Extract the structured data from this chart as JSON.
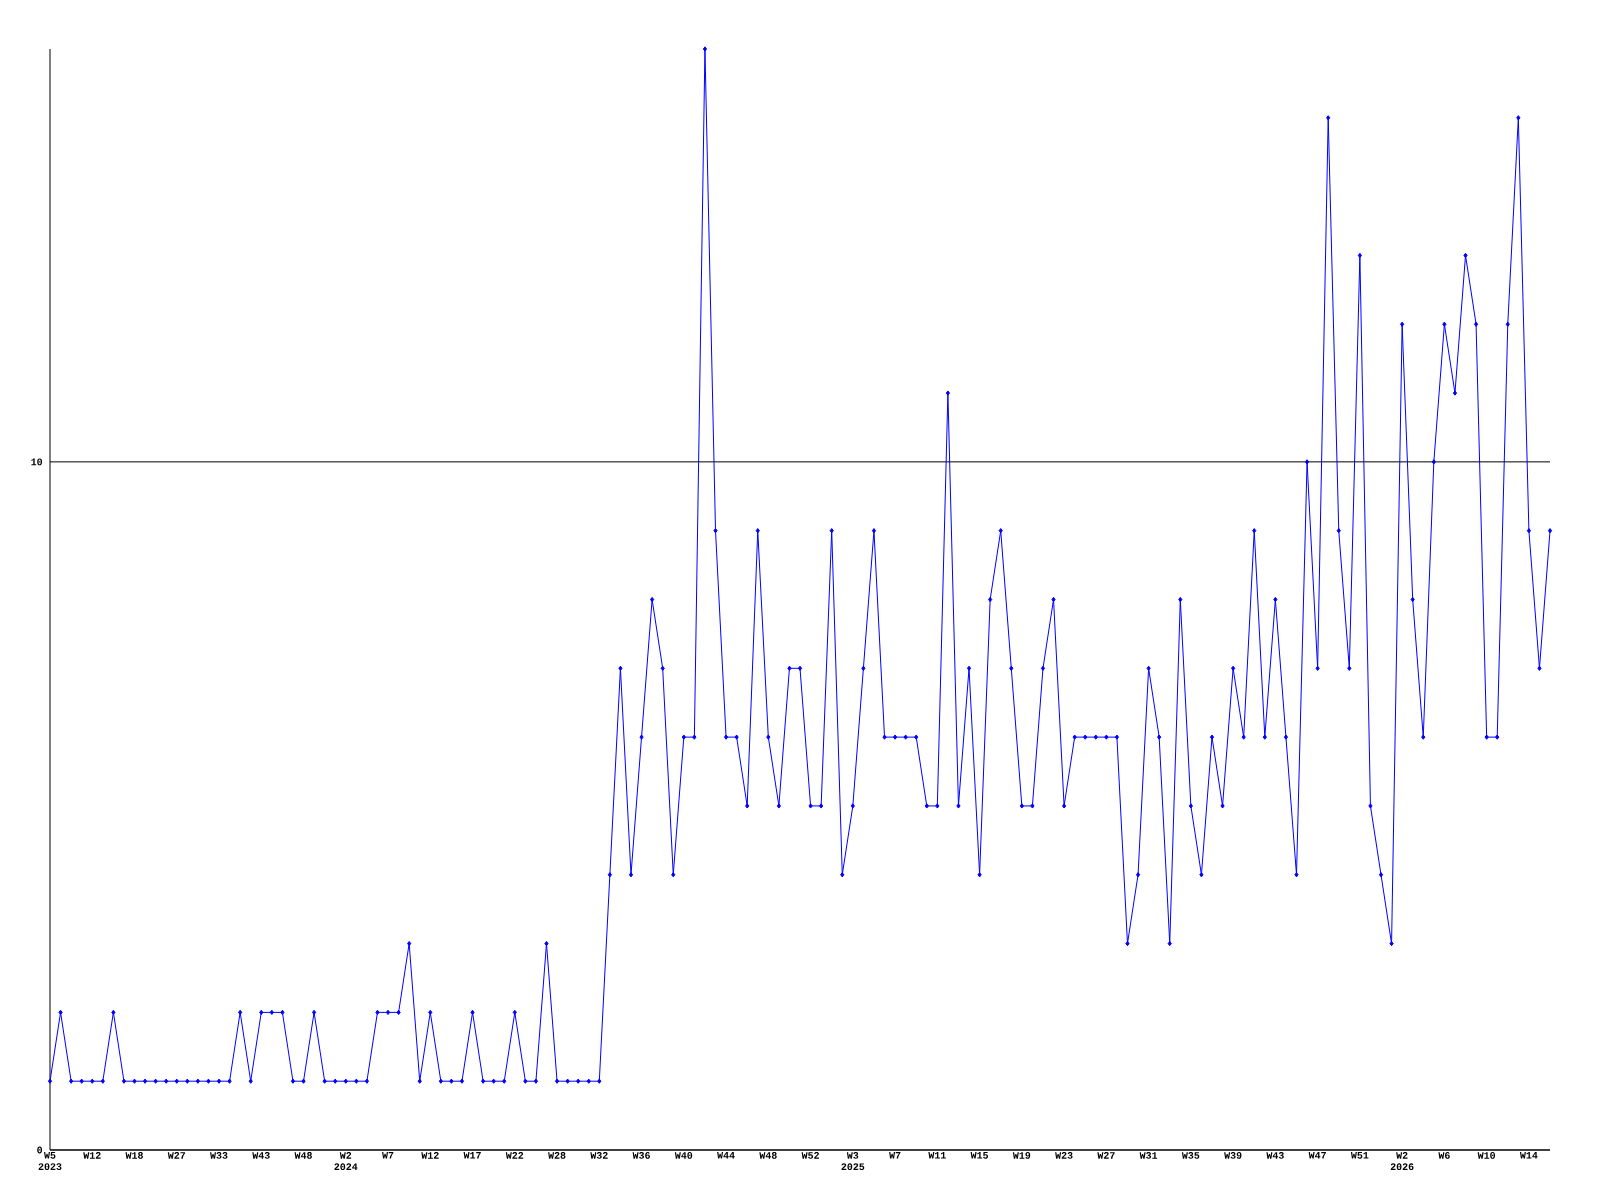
{
  "chart_data": {
    "type": "line",
    "categories": [
      "W5 2023",
      null,
      null,
      null,
      "W12",
      null,
      null,
      null,
      "W18",
      null,
      null,
      null,
      "W27",
      null,
      null,
      null,
      "W33",
      null,
      null,
      null,
      "W43",
      null,
      null,
      null,
      "W48",
      null,
      null,
      null,
      "W2 2024",
      null,
      null,
      null,
      "W7",
      null,
      null,
      null,
      "W12",
      null,
      null,
      null,
      "W17",
      null,
      null,
      null,
      "W22",
      null,
      null,
      null,
      "W28",
      null,
      null,
      null,
      "W32",
      null,
      null,
      null,
      "W36",
      null,
      null,
      null,
      "W40",
      null,
      null,
      null,
      "W44",
      null,
      null,
      null,
      "W48",
      null,
      null,
      null,
      "W52",
      null,
      null,
      null,
      "W3 2025",
      null,
      null,
      null,
      "W7",
      null,
      null,
      null,
      "W11",
      null,
      null,
      null,
      "W15",
      null,
      null,
      null,
      "W19",
      null,
      null,
      null,
      "W23",
      null,
      null,
      null,
      "W27",
      null,
      null,
      null,
      "W31",
      null,
      null,
      null,
      "W35",
      null,
      null,
      null,
      "W39",
      null,
      null,
      null,
      "W43",
      null,
      null,
      null,
      "W47",
      null,
      null,
      null,
      "W51",
      null,
      null,
      null,
      "W2 2026",
      null,
      null,
      null,
      "W6",
      null,
      null,
      null,
      "W10",
      null,
      null,
      null,
      "W14",
      null,
      null
    ],
    "values": [
      1,
      2,
      1,
      1,
      1,
      1,
      2,
      1,
      1,
      1,
      1,
      1,
      1,
      1,
      1,
      1,
      1,
      1,
      2,
      1,
      2,
      2,
      2,
      1,
      1,
      2,
      1,
      1,
      1,
      1,
      1,
      2,
      2,
      2,
      3,
      1,
      2,
      1,
      1,
      1,
      2,
      1,
      1,
      1,
      2,
      1,
      1,
      3,
      1,
      1,
      1,
      1,
      1,
      4,
      7,
      4,
      6,
      8,
      7,
      4,
      6,
      6,
      16,
      9,
      6,
      6,
      5,
      9,
      6,
      5,
      7,
      7,
      5,
      5,
      9,
      4,
      5,
      7,
      9,
      6,
      6,
      6,
      6,
      5,
      5,
      11,
      5,
      7,
      4,
      8,
      9,
      7,
      5,
      5,
      7,
      8,
      5,
      6,
      6,
      6,
      6,
      6,
      3,
      4,
      7,
      6,
      3,
      8,
      5,
      4,
      6,
      5,
      7,
      6,
      9,
      6,
      8,
      6,
      4,
      10,
      7,
      15,
      9,
      7,
      13,
      5,
      4,
      3,
      12,
      8,
      6,
      10,
      12,
      11,
      13,
      12,
      6,
      6,
      12,
      15,
      9,
      7,
      9
    ],
    "color": "#0000ff",
    "ylim": [
      0,
      16
    ],
    "yticks": [
      0,
      10
    ],
    "grid": "y",
    "marker": "diamond",
    "line_style": "solid"
  }
}
